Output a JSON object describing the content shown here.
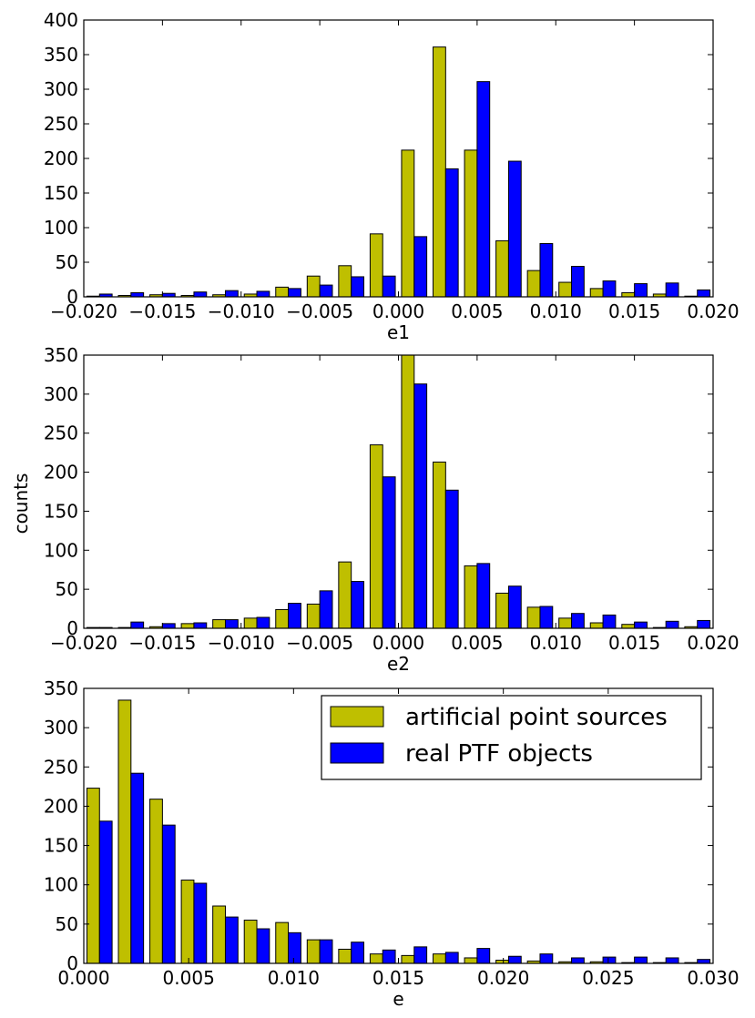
{
  "shared_ylabel": "counts",
  "colors": {
    "series_a": "#bfbf00",
    "series_b": "#0000ff",
    "edge": "#000000"
  },
  "chart_data": [
    {
      "type": "bar",
      "xlabel": "e1",
      "ylabel": "",
      "xlim": [
        -0.02,
        0.02
      ],
      "ylim": [
        0,
        400
      ],
      "xticks": [
        "−0.020",
        "−0.015",
        "−0.010",
        "−0.005",
        "0.000",
        "0.005",
        "0.010",
        "0.015",
        "0.020"
      ],
      "yticks": [
        "0",
        "50",
        "100",
        "150",
        "200",
        "250",
        "300",
        "350",
        "400"
      ],
      "bin_centers": [
        -0.019,
        -0.017,
        -0.015,
        -0.013,
        -0.011,
        -0.009,
        -0.007,
        -0.005,
        -0.003,
        -0.001,
        0.001,
        0.003,
        0.005,
        0.007,
        0.009,
        0.011,
        0.013,
        0.015,
        0.017,
        0.019
      ],
      "series": [
        {
          "name": "artificial point sources",
          "values": [
            1,
            2,
            3,
            2,
            3,
            4,
            14,
            30,
            45,
            91,
            212,
            361,
            212,
            81,
            38,
            21,
            12,
            6,
            4,
            1
          ]
        },
        {
          "name": "real PTF objects",
          "values": [
            4,
            6,
            5,
            7,
            9,
            8,
            12,
            17,
            29,
            30,
            87,
            185,
            311,
            196,
            77,
            44,
            23,
            19,
            20,
            10
          ]
        }
      ]
    },
    {
      "type": "bar",
      "xlabel": "e2",
      "ylabel": "",
      "xlim": [
        -0.02,
        0.02
      ],
      "ylim": [
        0,
        350
      ],
      "xticks": [
        "−0.020",
        "−0.015",
        "−0.010",
        "−0.005",
        "0.000",
        "0.005",
        "0.010",
        "0.015",
        "0.020"
      ],
      "yticks": [
        "0",
        "50",
        "100",
        "150",
        "200",
        "250",
        "300",
        "350"
      ],
      "bin_centers": [
        -0.019,
        -0.017,
        -0.015,
        -0.013,
        -0.011,
        -0.009,
        -0.007,
        -0.005,
        -0.003,
        -0.001,
        0.001,
        0.003,
        0.005,
        0.007,
        0.009,
        0.011,
        0.013,
        0.015,
        0.017,
        0.019
      ],
      "series": [
        {
          "name": "artificial point sources",
          "values": [
            1,
            1,
            2,
            6,
            11,
            13,
            24,
            31,
            85,
            235,
            350,
            213,
            80,
            45,
            27,
            13,
            7,
            5,
            1,
            2
          ]
        },
        {
          "name": "real PTF objects",
          "values": [
            1,
            8,
            6,
            7,
            11,
            14,
            32,
            48,
            60,
            194,
            313,
            177,
            83,
            54,
            28,
            19,
            17,
            8,
            9,
            10
          ]
        }
      ]
    },
    {
      "type": "bar",
      "xlabel": "e",
      "ylabel": "",
      "xlim": [
        0,
        0.03
      ],
      "ylim": [
        0,
        350
      ],
      "xticks": [
        "0.000",
        "0.005",
        "0.010",
        "0.015",
        "0.020",
        "0.025",
        "0.030"
      ],
      "yticks": [
        "0",
        "50",
        "100",
        "150",
        "200",
        "250",
        "300",
        "350"
      ],
      "legend": {
        "position": "top-right",
        "entries": [
          "artificial point sources",
          "real PTF objects"
        ]
      },
      "bin_centers": [
        0.00075,
        0.00225,
        0.00375,
        0.00525,
        0.00675,
        0.00825,
        0.00975,
        0.01125,
        0.01275,
        0.01425,
        0.01575,
        0.01725,
        0.01875,
        0.02025,
        0.02175,
        0.02325,
        0.02475,
        0.02625,
        0.02775,
        0.02925
      ],
      "series": [
        {
          "name": "artificial point sources",
          "values": [
            223,
            335,
            209,
            106,
            73,
            55,
            52,
            30,
            18,
            12,
            10,
            12,
            7,
            4,
            3,
            2,
            2,
            1,
            1,
            1
          ]
        },
        {
          "name": "real PTF objects",
          "values": [
            181,
            242,
            176,
            102,
            59,
            44,
            39,
            30,
            27,
            17,
            21,
            14,
            19,
            9,
            12,
            7,
            8,
            8,
            7,
            5
          ]
        }
      ]
    }
  ]
}
